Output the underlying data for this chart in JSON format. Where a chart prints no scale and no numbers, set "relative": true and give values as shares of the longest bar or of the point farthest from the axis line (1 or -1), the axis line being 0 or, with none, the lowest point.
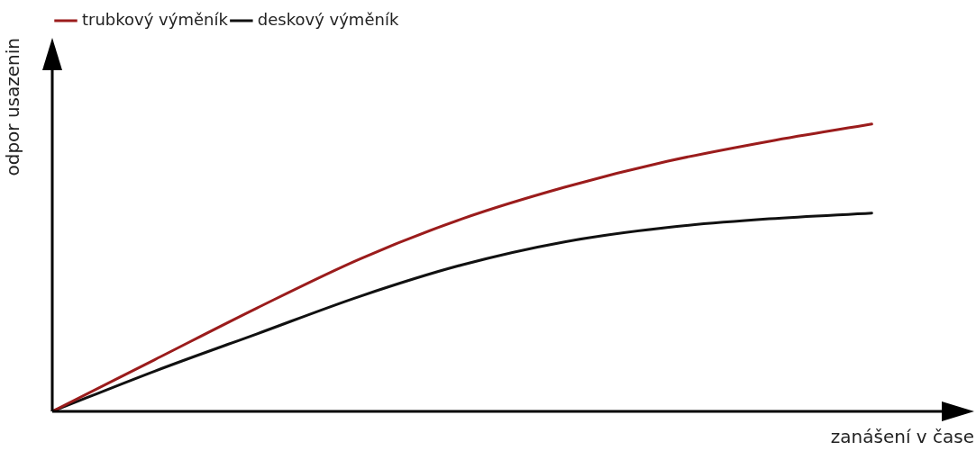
{
  "chart_data": {
    "type": "line",
    "relative": true,
    "xlabel": "zanášení v čase",
    "ylabel": "odpor usazenin",
    "categories": [
      null,
      null,
      null,
      null,
      null,
      null,
      null,
      null,
      null,
      null
    ],
    "series": [
      {
        "name": "trubkový výměník",
        "color": "#9b1c1c",
        "values": [
          0,
          0.18,
          0.36,
          0.53,
          0.67,
          0.78,
          0.87,
          0.94,
          1,
          null
        ]
      },
      {
        "name": "deskový výměník",
        "color": "#111111",
        "values": [
          0,
          0.14,
          0.27,
          0.4,
          0.51,
          0.59,
          0.64,
          0.67,
          0.69,
          null
        ]
      }
    ],
    "legend": "top left",
    "grid": false,
    "marker": "none",
    "line_style": "solid"
  }
}
